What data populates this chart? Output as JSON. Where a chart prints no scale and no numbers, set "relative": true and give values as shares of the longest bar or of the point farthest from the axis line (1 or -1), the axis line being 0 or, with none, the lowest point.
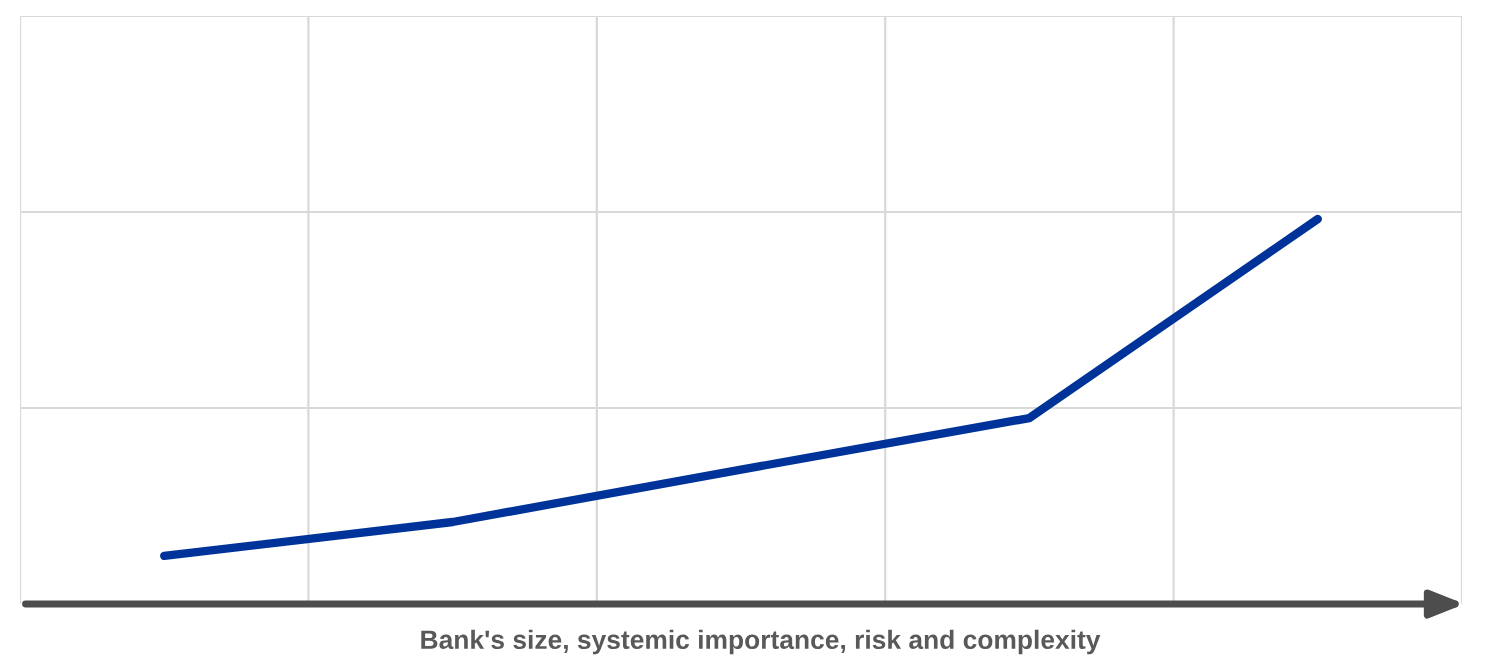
{
  "chart_data": {
    "type": "line",
    "relative": true,
    "xlabel": "Bank's size, systemic importance, risk and complexity",
    "categories": [
      null,
      null,
      null,
      null,
      null
    ],
    "series": [
      {
        "color": "#003399",
        "values": [
          0.125,
          0.213,
          0.349,
          0.483,
          1.0
        ]
      }
    ],
    "grid": true,
    "marker": "none",
    "line_style": "solid",
    "legend": false
  }
}
